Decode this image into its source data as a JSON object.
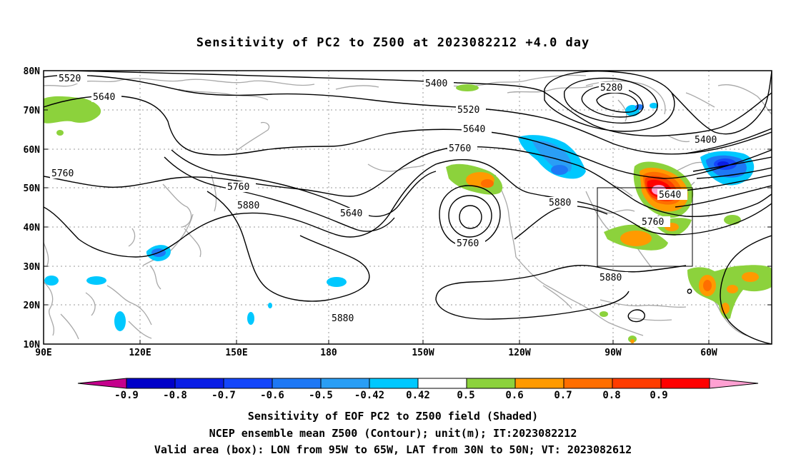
{
  "title": "Sensitivity of PC2 to Z500 at 2023082212 +4.0 day",
  "lat_labels": [
    "80N",
    "70N",
    "60N",
    "50N",
    "40N",
    "30N",
    "20N",
    "10N"
  ],
  "lon_labels": [
    "90E",
    "120E",
    "150E",
    "180",
    "150W",
    "120W",
    "90W",
    "60W"
  ],
  "contour_labels": [
    "5520",
    "5640",
    "5760",
    "5760",
    "5880",
    "5640",
    "5400",
    "5520",
    "5640",
    "5760",
    "5760",
    "5880",
    "5280",
    "5400",
    "5640",
    "5760",
    "5880",
    "5880"
  ],
  "colorbar": {
    "labels": [
      "-0.9",
      "-0.8",
      "-0.7",
      "-0.6",
      "-0.5",
      "-0.42",
      "0.42",
      "0.5",
      "0.6",
      "0.7",
      "0.8",
      "0.9"
    ],
    "colors": [
      "#c4008c",
      "#0000c8",
      "#0a1ee6",
      "#1446fa",
      "#1e78f5",
      "#2a9ef5",
      "#00c8ff",
      "#ffffff",
      "#8cd23c",
      "#ff9a00",
      "#ff6e00",
      "#ff3c00",
      "#ff0000",
      "#ffa0d2"
    ]
  },
  "valid_box": {
    "lon_range": "95W to 65W",
    "lat_range": "30N to 50N"
  },
  "captions": [
    "Sensitivity of EOF PC2 to Z500 field (Shaded)",
    "NCEP ensemble mean Z500 (Contour); unit(m); IT:2023082212",
    "Valid area (box): LON from 95W to 65W, LAT from 30N to 50N; VT: 2023082612"
  ]
}
